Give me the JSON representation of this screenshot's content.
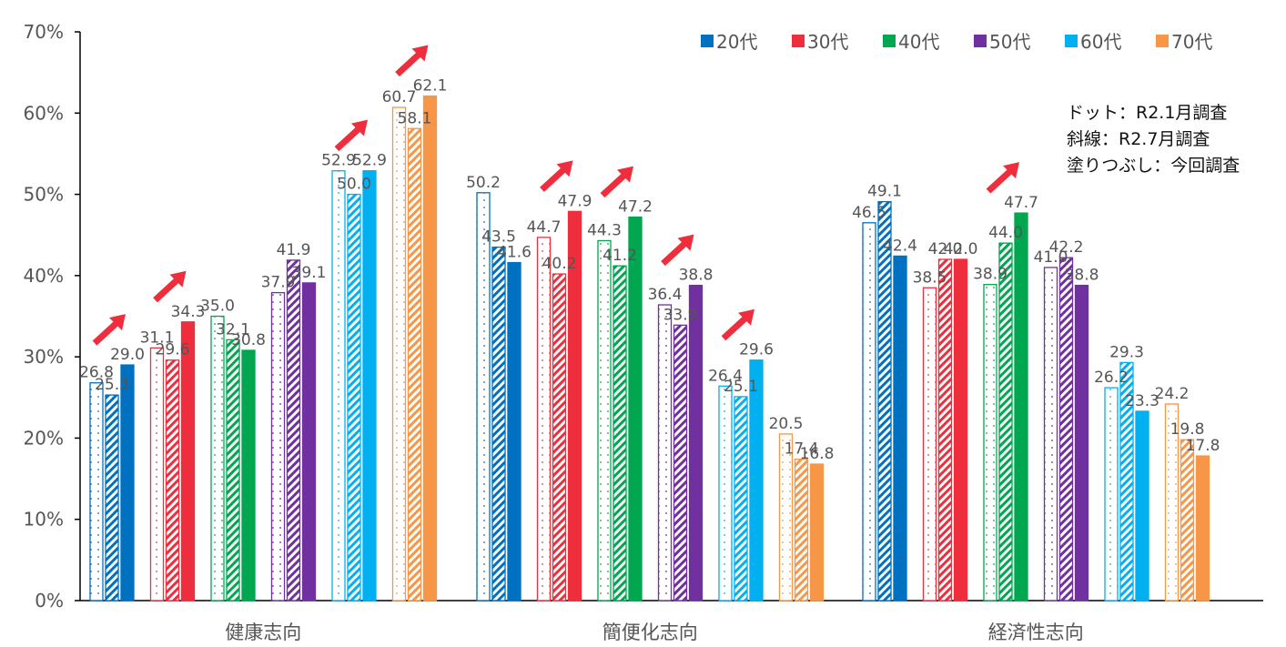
{
  "chart_data": {
    "type": "bar",
    "categories": [
      "健康志向",
      "簡便化志向",
      "経済性志向"
    ],
    "y_ticks": [
      "0%",
      "10%",
      "20%",
      "30%",
      "40%",
      "50%",
      "60%",
      "70%"
    ],
    "ylim": [
      0,
      70
    ],
    "grid": false,
    "legend_position": "top-right",
    "series": [
      {
        "name": "20代",
        "color": "#0070C0",
        "values": {
          "dot": [
            26.8,
            50.2,
            46.5
          ],
          "hatch": [
            25.3,
            43.5,
            49.1
          ],
          "solid": [
            29.0,
            41.6,
            42.4
          ]
        }
      },
      {
        "name": "30代",
        "color": "#EE2E3C",
        "values": {
          "dot": [
            31.1,
            44.7,
            38.5
          ],
          "hatch": [
            29.6,
            40.2,
            42.0
          ],
          "solid": [
            34.3,
            47.9,
            42.0
          ]
        }
      },
      {
        "name": "40代",
        "color": "#00A650",
        "values": {
          "dot": [
            35.0,
            44.3,
            38.9
          ],
          "hatch": [
            32.1,
            41.2,
            44.0
          ],
          "solid": [
            30.8,
            47.2,
            47.7
          ]
        }
      },
      {
        "name": "50代",
        "color": "#7030A0",
        "values": {
          "dot": [
            37.9,
            36.4,
            41.0
          ],
          "hatch": [
            41.9,
            33.9,
            42.2
          ],
          "solid": [
            39.1,
            38.8,
            38.8
          ]
        }
      },
      {
        "name": "60代",
        "color": "#00B0F0",
        "values": {
          "dot": [
            52.9,
            26.4,
            26.2
          ],
          "hatch": [
            50.0,
            25.1,
            29.3
          ],
          "solid": [
            52.9,
            29.6,
            23.3
          ]
        }
      },
      {
        "name": "70代",
        "color": "#F79646",
        "values": {
          "dot": [
            60.7,
            20.5,
            24.2
          ],
          "hatch": [
            58.1,
            17.4,
            19.8
          ],
          "solid": [
            62.1,
            16.8,
            17.8
          ]
        }
      }
    ],
    "survey_notes": [
      {
        "pattern": "dot",
        "text": "ドット：R2.1月調査"
      },
      {
        "pattern": "hatch",
        "text": "斜線：R2.7月調査"
      },
      {
        "pattern": "solid",
        "text": "塗りつぶし：今回調査"
      }
    ],
    "arrows": [
      {
        "category": 0,
        "series": 0
      },
      {
        "category": 0,
        "series": 1
      },
      {
        "category": 0,
        "series": 4
      },
      {
        "category": 0,
        "series": 5
      },
      {
        "category": 1,
        "series": 1
      },
      {
        "category": 1,
        "series": 2
      },
      {
        "category": 1,
        "series": 3
      },
      {
        "category": 1,
        "series": 4
      },
      {
        "category": 2,
        "series": 2
      }
    ],
    "arrow_color": "#EE2E3C"
  }
}
